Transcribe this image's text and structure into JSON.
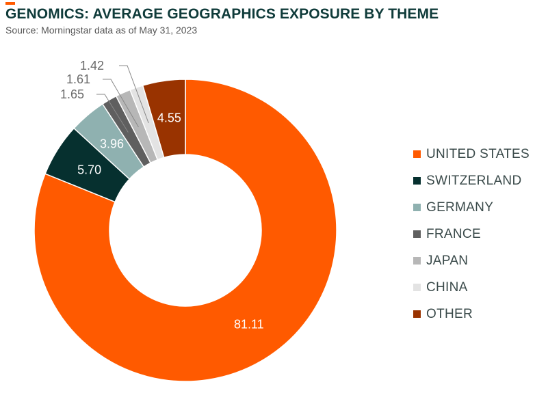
{
  "header": {
    "title": "GENOMICS: AVERAGE GEOGRAPHICS EXPOSURE BY THEME",
    "subtitle": "Source: Morningstar data as of May 31, 2023",
    "accent_color": "#ff5a00"
  },
  "chart_data": {
    "type": "pie",
    "variant": "donut",
    "title": "GENOMICS: AVERAGE GEOGRAPHICS EXPOSURE BY THEME",
    "subtitle": "Source: Morningstar data as of May 31, 2023",
    "legend_position": "right",
    "slices": [
      {
        "label": "UNITED STATES",
        "value": 81.11,
        "value_label": "81.11",
        "color": "#ff5a00",
        "label_color": "#ffffff",
        "label_style": "inside"
      },
      {
        "label": "SWITZERLAND",
        "value": 5.7,
        "value_label": "5.70",
        "color": "#06302f",
        "label_color": "#ffffff",
        "label_style": "inside"
      },
      {
        "label": "GERMANY",
        "value": 3.96,
        "value_label": "3.96",
        "color": "#8fb1b0",
        "label_color": "#ffffff",
        "label_style": "inside"
      },
      {
        "label": "FRANCE",
        "value": 1.65,
        "value_label": "1.65",
        "color": "#5f5f5f",
        "label_color": "#6b6b6b",
        "label_style": "outside"
      },
      {
        "label": "JAPAN",
        "value": 1.61,
        "value_label": "1.61",
        "color": "#b7b7b7",
        "label_color": "#6b6b6b",
        "label_style": "outside"
      },
      {
        "label": "CHINA",
        "value": 1.42,
        "value_label": "1.42",
        "color": "#e3e3e3",
        "label_color": "#6b6b6b",
        "label_style": "outside"
      },
      {
        "label": "OTHER",
        "value": 4.55,
        "value_label": "4.55",
        "color": "#993300",
        "label_color": "#ffffff",
        "label_style": "inside"
      }
    ]
  }
}
